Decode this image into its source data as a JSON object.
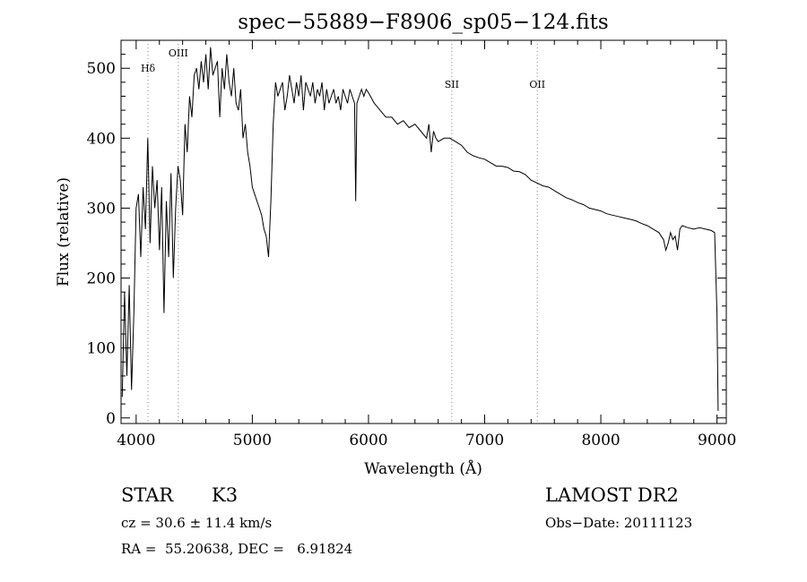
{
  "chart_data": {
    "type": "line",
    "title": "spec−55889−F8906_sp05−124.fits",
    "xlabel": "Wavelength (Å)",
    "ylabel": "Flux (relative)",
    "xlim": [
      3870,
      9080
    ],
    "ylim": [
      -8,
      540
    ],
    "xticks": [
      4000,
      5000,
      6000,
      7000,
      8000,
      9000
    ],
    "yticks": [
      0,
      100,
      200,
      300,
      400,
      500
    ],
    "xtick_labels": [
      "4000",
      "5000",
      "6000",
      "7000",
      "8000",
      "9000"
    ],
    "ytick_labels": [
      "0",
      "100",
      "200",
      "300",
      "400",
      "500"
    ],
    "grid": false,
    "line_color": "#000000",
    "marker_color": "#888888",
    "lines": [
      {
        "label": "Hδ",
        "x": 4102
      },
      {
        "label": "OIII",
        "x": 4363
      },
      {
        "label": "SII",
        "x": 6717
      },
      {
        "label": "OII",
        "x": 7453
      }
    ],
    "series": [
      {
        "x": [
          3880,
          3900,
          3920,
          3940,
          3960,
          3980,
          4000,
          4020,
          4040,
          4060,
          4080,
          4100,
          4120,
          4140,
          4160,
          4180,
          4200,
          4220,
          4240,
          4260,
          4280,
          4300,
          4320,
          4340,
          4360,
          4380,
          4400,
          4420,
          4440,
          4460,
          4480,
          4500,
          4520,
          4540,
          4560,
          4580,
          4600,
          4620,
          4640,
          4660,
          4680,
          4700,
          4720,
          4740,
          4760,
          4780,
          4800,
          4820,
          4840,
          4860,
          4880,
          4900,
          4920,
          4940,
          4960,
          4980,
          5000,
          5020,
          5040,
          5060,
          5080,
          5100,
          5120,
          5140,
          5160,
          5180,
          5200,
          5220,
          5240,
          5260,
          5280,
          5300,
          5320,
          5340,
          5360,
          5380,
          5400,
          5420,
          5440,
          5460,
          5480,
          5500,
          5520,
          5540,
          5560,
          5580,
          5600,
          5620,
          5640,
          5660,
          5680,
          5700,
          5720,
          5740,
          5760,
          5780,
          5800,
          5820,
          5840,
          5860,
          5880,
          5890,
          5900,
          5920,
          5940,
          5960,
          5980,
          6000,
          6050,
          6100,
          6150,
          6200,
          6250,
          6300,
          6350,
          6400,
          6450,
          6500,
          6520,
          6540,
          6560,
          6580,
          6600,
          6650,
          6700,
          6750,
          6800,
          6850,
          6900,
          6950,
          7000,
          7050,
          7100,
          7150,
          7200,
          7250,
          7300,
          7350,
          7400,
          7450,
          7500,
          7550,
          7600,
          7650,
          7700,
          7750,
          7800,
          7850,
          7900,
          7950,
          8000,
          8050,
          8100,
          8150,
          8200,
          8250,
          8300,
          8350,
          8400,
          8450,
          8500,
          8520,
          8540,
          8560,
          8580,
          8600,
          8620,
          8640,
          8660,
          8680,
          8700,
          8750,
          8800,
          8850,
          8900,
          8950,
          8980,
          9000,
          9010
        ],
        "y": [
          30,
          180,
          60,
          190,
          40,
          150,
          300,
          320,
          230,
          330,
          270,
          400,
          250,
          360,
          300,
          340,
          240,
          330,
          150,
          310,
          230,
          350,
          200,
          300,
          360,
          340,
          290,
          420,
          380,
          460,
          430,
          490,
          500,
          470,
          510,
          480,
          520,
          470,
          530,
          490,
          500,
          510,
          430,
          500,
          470,
          520,
          480,
          460,
          500,
          450,
          440,
          470,
          400,
          420,
          380,
          360,
          330,
          320,
          310,
          300,
          290,
          270,
          260,
          230,
          310,
          420,
          480,
          460,
          470,
          480,
          440,
          460,
          490,
          470,
          450,
          480,
          460,
          490,
          440,
          480,
          470,
          460,
          480,
          450,
          470,
          460,
          480,
          440,
          470,
          450,
          460,
          470,
          450,
          460,
          440,
          470,
          460,
          450,
          470,
          460,
          450,
          310,
          450,
          460,
          470,
          460,
          470,
          465,
          450,
          440,
          430,
          430,
          420,
          425,
          415,
          420,
          410,
          400,
          420,
          380,
          410,
          400,
          395,
          400,
          400,
          395,
          390,
          380,
          375,
          372,
          370,
          365,
          360,
          360,
          358,
          353,
          352,
          348,
          340,
          336,
          332,
          330,
          325,
          320,
          315,
          312,
          308,
          305,
          300,
          298,
          296,
          292,
          290,
          288,
          286,
          284,
          282,
          278,
          275,
          270,
          265,
          260,
          255,
          240,
          250,
          265,
          255,
          260,
          240,
          270,
          275,
          272,
          270,
          272,
          270,
          268,
          265,
          150,
          10
        ]
      }
    ]
  },
  "info": {
    "class_label": "STAR",
    "subclass_label": "K3",
    "survey": "LAMOST DR2",
    "cz": "cz = 30.6 ± 11.4 km/s",
    "obs_date": "Obs−Date: 20111123",
    "coords": "RA =  55.20638, DEC =   6.91824"
  }
}
